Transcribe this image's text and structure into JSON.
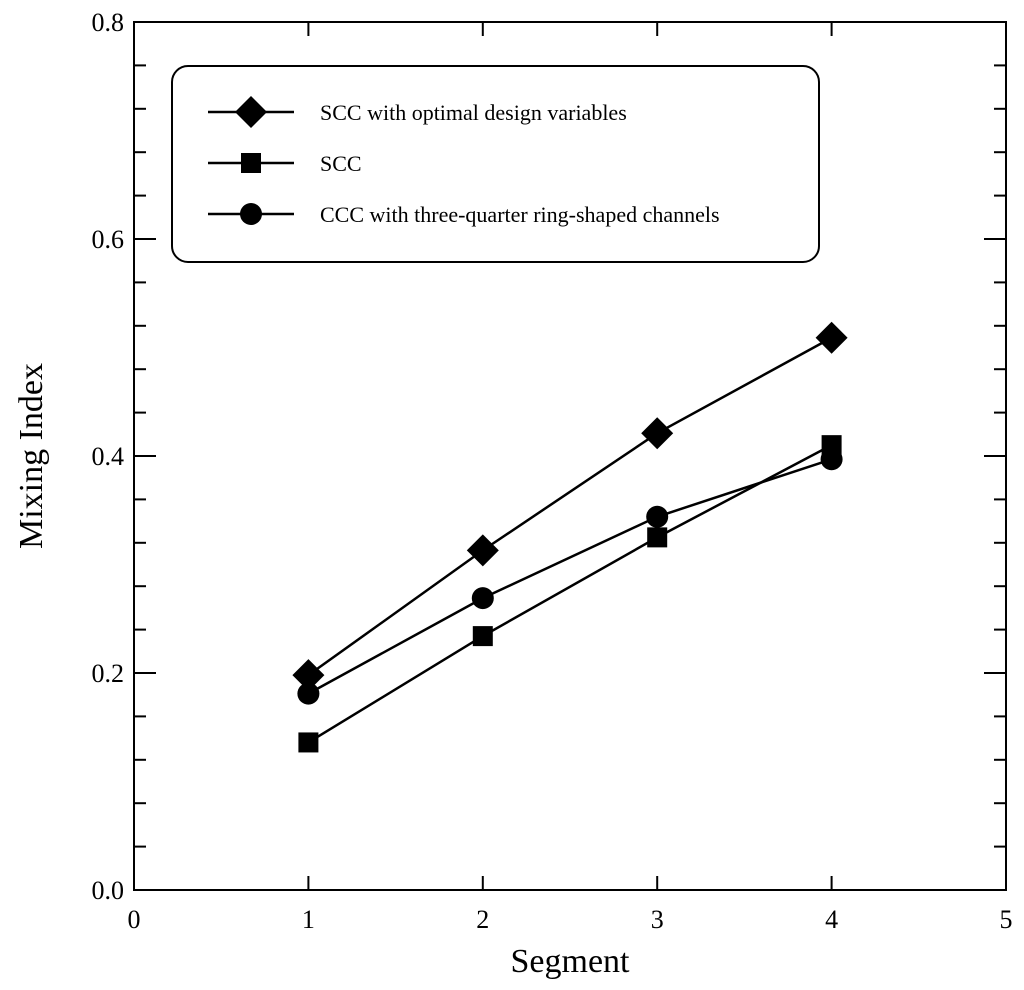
{
  "chart_data": {
    "type": "line",
    "title": "",
    "xlabel": "Segment",
    "ylabel": "Mixing Index",
    "xlim": [
      0,
      5
    ],
    "ylim": [
      0,
      0.8
    ],
    "x_ticks": [
      0,
      1,
      2,
      3,
      4,
      5
    ],
    "x_tick_labels": [
      "0",
      "1",
      "2",
      "3",
      "4",
      "5"
    ],
    "y_ticks": [
      0,
      0.2,
      0.4,
      0.6,
      0.8
    ],
    "y_tick_labels": [
      "0.0",
      "0.2",
      "0.4",
      "0.6",
      "0.8"
    ],
    "y_minor_step": 0.04,
    "grid": false,
    "legend_position": "top-left",
    "x": [
      1,
      2,
      3,
      4
    ],
    "series": [
      {
        "name": "SCC with optimal design variables",
        "marker": "diamond",
        "values": [
          0.198,
          0.313,
          0.421,
          0.509
        ]
      },
      {
        "name": "SCC",
        "marker": "square",
        "values": [
          0.136,
          0.234,
          0.325,
          0.41
        ]
      },
      {
        "name": "CCC with three-quarter ring-shaped channels",
        "marker": "circle",
        "values": [
          0.181,
          0.269,
          0.344,
          0.397
        ]
      }
    ],
    "colors": {
      "line": "#000000",
      "marker": "#000000",
      "background": "#ffffff"
    }
  }
}
